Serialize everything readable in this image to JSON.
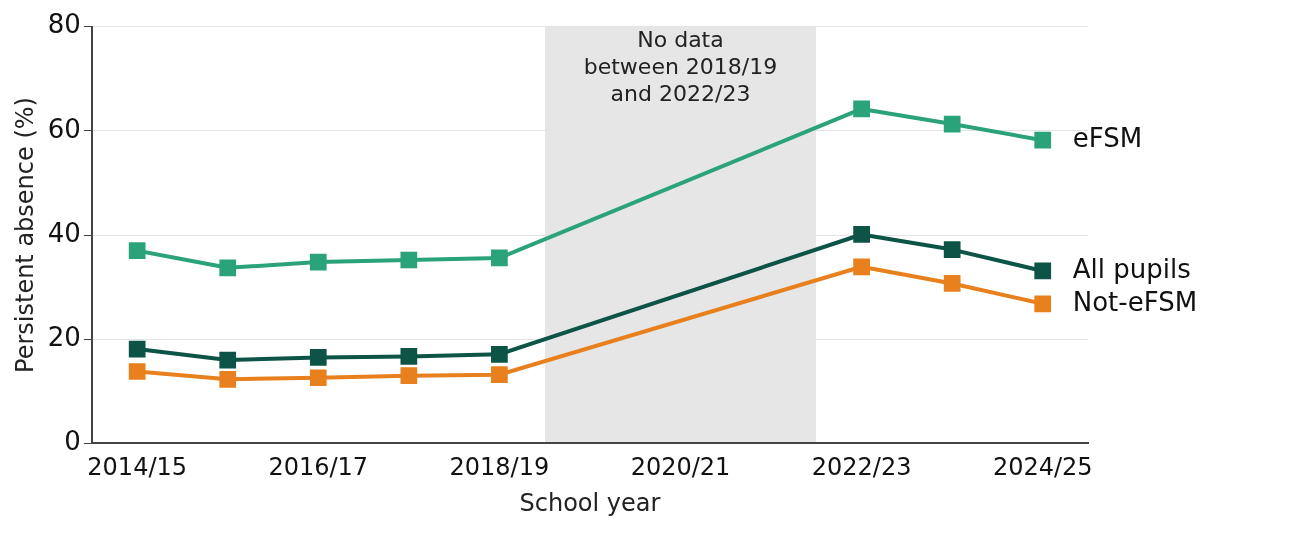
{
  "chart_data": {
    "type": "line",
    "xlabel": "School year",
    "ylabel": "Persistent absence (%)",
    "categories": [
      "2014/15",
      null,
      "2016/17",
      null,
      "2018/19",
      null,
      "2020/21",
      null,
      "2022/23",
      null,
      "2024/25"
    ],
    "ylim": [
      0,
      80
    ],
    "yticks": [
      0,
      20,
      40,
      60,
      80
    ],
    "grid": "y",
    "legend": false,
    "marker": "square",
    "line_style": "solid",
    "series": [
      {
        "name": "eFSM",
        "color": "#2aa37a",
        "values": [
          37,
          33.7,
          34.8,
          35.2,
          35.6,
          null,
          null,
          null,
          64.2,
          61.3,
          58.2
        ]
      },
      {
        "name": "All pupils",
        "color": "#0d5446",
        "values": [
          18.1,
          16,
          16.5,
          16.7,
          17.1,
          null,
          null,
          null,
          40.1,
          37.2,
          33.1
        ]
      },
      {
        "name": "Not-eFSM",
        "color": "#e8801e",
        "values": [
          13.8,
          12.3,
          12.6,
          13,
          13.2,
          null,
          null,
          null,
          33.9,
          30.7,
          26.8
        ]
      }
    ],
    "annotations": [
      "No data\nbetween 2018/19\nand 2022/23"
    ]
  }
}
